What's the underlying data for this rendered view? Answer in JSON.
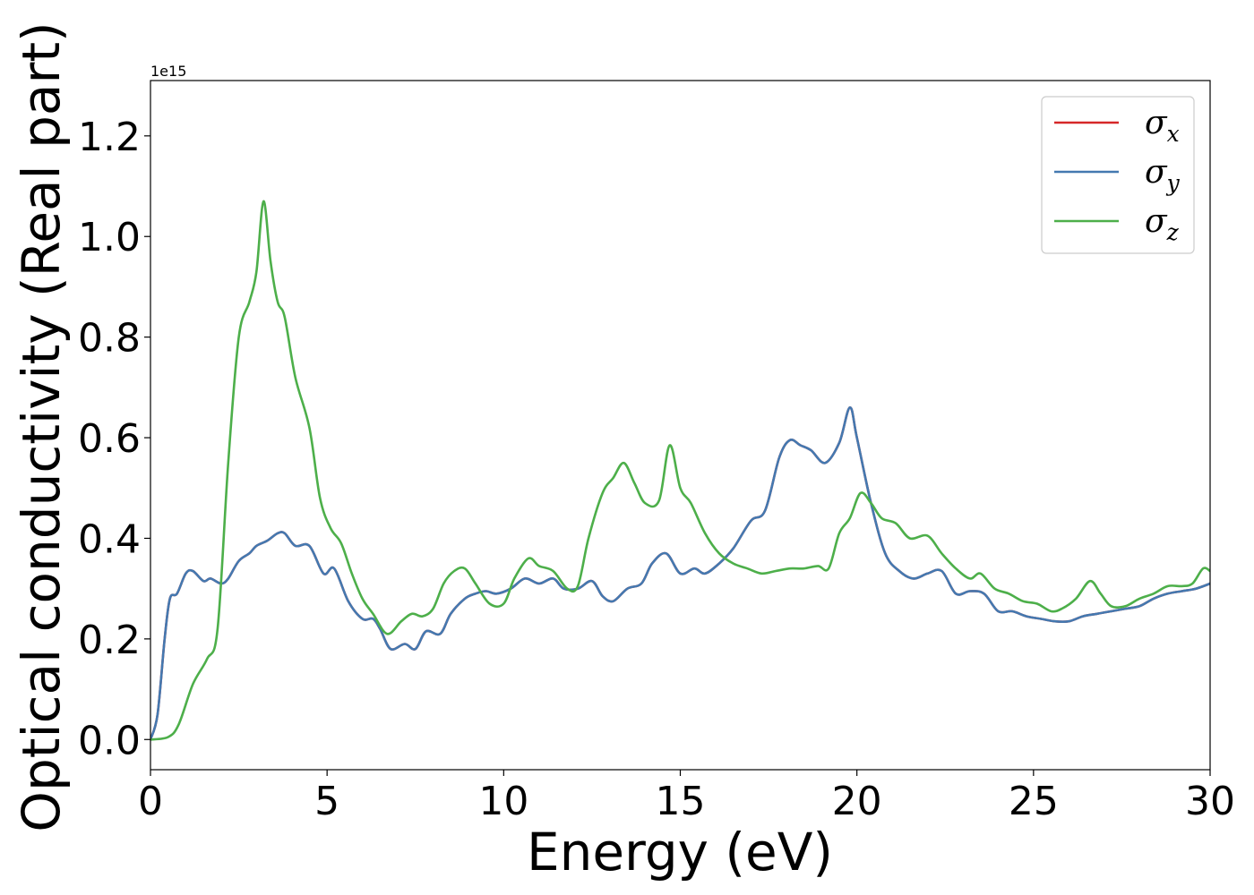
{
  "chart_data": {
    "type": "line",
    "xlabel": "Energy (eV)",
    "ylabel": "Optical conductivity (Real part)",
    "y_offset_text": "1e15",
    "xlim": [
      0,
      30
    ],
    "ylim": [
      -0.06,
      1.31
    ],
    "x_ticks": [
      0,
      5,
      10,
      15,
      20,
      25,
      30
    ],
    "y_ticks": [
      0.0,
      0.2,
      0.4,
      0.6,
      0.8,
      1.0,
      1.2
    ],
    "x_tick_labels": [
      "0",
      "5",
      "10",
      "15",
      "20",
      "25",
      "30"
    ],
    "y_tick_labels": [
      "0.0",
      "0.2",
      "0.4",
      "0.6",
      "0.8",
      "1.0",
      "1.2"
    ],
    "legend_position": "top-right",
    "series": [
      {
        "name": "σx",
        "base": "σ",
        "sub": "x",
        "color": "#d62728",
        "points": [
          [
            0,
            0.0
          ],
          [
            0.2,
            0.05
          ],
          [
            0.4,
            0.2
          ],
          [
            0.55,
            0.28
          ],
          [
            0.75,
            0.29
          ],
          [
            1.0,
            0.33
          ],
          [
            1.2,
            0.335
          ],
          [
            1.5,
            0.315
          ],
          [
            1.7,
            0.32
          ],
          [
            2.0,
            0.31
          ],
          [
            2.2,
            0.32
          ],
          [
            2.5,
            0.355
          ],
          [
            2.8,
            0.37
          ],
          [
            3.0,
            0.385
          ],
          [
            3.3,
            0.395
          ],
          [
            3.6,
            0.41
          ],
          [
            3.8,
            0.41
          ],
          [
            4.1,
            0.385
          ],
          [
            4.5,
            0.385
          ],
          [
            4.9,
            0.33
          ],
          [
            5.2,
            0.34
          ],
          [
            5.6,
            0.275
          ],
          [
            6.0,
            0.24
          ],
          [
            6.3,
            0.24
          ],
          [
            6.5,
            0.22
          ],
          [
            6.8,
            0.18
          ],
          [
            7.2,
            0.19
          ],
          [
            7.5,
            0.18
          ],
          [
            7.8,
            0.215
          ],
          [
            8.2,
            0.21
          ],
          [
            8.5,
            0.25
          ],
          [
            8.9,
            0.28
          ],
          [
            9.2,
            0.29
          ],
          [
            9.5,
            0.295
          ],
          [
            9.8,
            0.29
          ],
          [
            10.2,
            0.3
          ],
          [
            10.6,
            0.32
          ],
          [
            11.0,
            0.31
          ],
          [
            11.4,
            0.32
          ],
          [
            11.7,
            0.3
          ],
          [
            12.1,
            0.3
          ],
          [
            12.5,
            0.315
          ],
          [
            12.8,
            0.285
          ],
          [
            13.1,
            0.275
          ],
          [
            13.5,
            0.3
          ],
          [
            13.9,
            0.31
          ],
          [
            14.2,
            0.35
          ],
          [
            14.6,
            0.37
          ],
          [
            15.0,
            0.33
          ],
          [
            15.4,
            0.34
          ],
          [
            15.7,
            0.33
          ],
          [
            16.1,
            0.35
          ],
          [
            16.5,
            0.38
          ],
          [
            17.0,
            0.435
          ],
          [
            17.4,
            0.455
          ],
          [
            17.8,
            0.56
          ],
          [
            18.1,
            0.595
          ],
          [
            18.4,
            0.585
          ],
          [
            18.7,
            0.575
          ],
          [
            19.1,
            0.55
          ],
          [
            19.5,
            0.59
          ],
          [
            19.8,
            0.66
          ],
          [
            20.0,
            0.6
          ],
          [
            20.4,
            0.47
          ],
          [
            20.8,
            0.37
          ],
          [
            21.2,
            0.335
          ],
          [
            21.6,
            0.32
          ],
          [
            22.0,
            0.33
          ],
          [
            22.4,
            0.335
          ],
          [
            22.8,
            0.29
          ],
          [
            23.2,
            0.295
          ],
          [
            23.6,
            0.29
          ],
          [
            24.0,
            0.255
          ],
          [
            24.4,
            0.255
          ],
          [
            24.8,
            0.245
          ],
          [
            25.2,
            0.24
          ],
          [
            25.6,
            0.235
          ],
          [
            26.0,
            0.235
          ],
          [
            26.4,
            0.245
          ],
          [
            26.8,
            0.25
          ],
          [
            27.2,
            0.255
          ],
          [
            27.6,
            0.26
          ],
          [
            28.0,
            0.265
          ],
          [
            28.4,
            0.28
          ],
          [
            28.8,
            0.29
          ],
          [
            29.2,
            0.295
          ],
          [
            29.6,
            0.3
          ],
          [
            30.0,
            0.31
          ]
        ]
      },
      {
        "name": "σy",
        "base": "σ",
        "sub": "y",
        "color": "#4479b0",
        "points": [
          [
            0,
            0.0
          ],
          [
            0.2,
            0.05
          ],
          [
            0.4,
            0.2
          ],
          [
            0.55,
            0.28
          ],
          [
            0.75,
            0.29
          ],
          [
            1.0,
            0.33
          ],
          [
            1.2,
            0.335
          ],
          [
            1.5,
            0.315
          ],
          [
            1.7,
            0.32
          ],
          [
            2.0,
            0.31
          ],
          [
            2.2,
            0.32
          ],
          [
            2.5,
            0.355
          ],
          [
            2.8,
            0.37
          ],
          [
            3.0,
            0.385
          ],
          [
            3.3,
            0.395
          ],
          [
            3.6,
            0.41
          ],
          [
            3.8,
            0.41
          ],
          [
            4.1,
            0.385
          ],
          [
            4.5,
            0.385
          ],
          [
            4.9,
            0.33
          ],
          [
            5.2,
            0.34
          ],
          [
            5.6,
            0.275
          ],
          [
            6.0,
            0.24
          ],
          [
            6.3,
            0.24
          ],
          [
            6.5,
            0.22
          ],
          [
            6.8,
            0.18
          ],
          [
            7.2,
            0.19
          ],
          [
            7.5,
            0.18
          ],
          [
            7.8,
            0.215
          ],
          [
            8.2,
            0.21
          ],
          [
            8.5,
            0.25
          ],
          [
            8.9,
            0.28
          ],
          [
            9.2,
            0.29
          ],
          [
            9.5,
            0.295
          ],
          [
            9.8,
            0.29
          ],
          [
            10.2,
            0.3
          ],
          [
            10.6,
            0.32
          ],
          [
            11.0,
            0.31
          ],
          [
            11.4,
            0.32
          ],
          [
            11.7,
            0.3
          ],
          [
            12.1,
            0.3
          ],
          [
            12.5,
            0.315
          ],
          [
            12.8,
            0.285
          ],
          [
            13.1,
            0.275
          ],
          [
            13.5,
            0.3
          ],
          [
            13.9,
            0.31
          ],
          [
            14.2,
            0.35
          ],
          [
            14.6,
            0.37
          ],
          [
            15.0,
            0.33
          ],
          [
            15.4,
            0.34
          ],
          [
            15.7,
            0.33
          ],
          [
            16.1,
            0.35
          ],
          [
            16.5,
            0.38
          ],
          [
            17.0,
            0.435
          ],
          [
            17.4,
            0.455
          ],
          [
            17.8,
            0.56
          ],
          [
            18.1,
            0.595
          ],
          [
            18.4,
            0.585
          ],
          [
            18.7,
            0.575
          ],
          [
            19.1,
            0.55
          ],
          [
            19.5,
            0.59
          ],
          [
            19.8,
            0.66
          ],
          [
            20.0,
            0.6
          ],
          [
            20.4,
            0.47
          ],
          [
            20.8,
            0.37
          ],
          [
            21.2,
            0.335
          ],
          [
            21.6,
            0.32
          ],
          [
            22.0,
            0.33
          ],
          [
            22.4,
            0.335
          ],
          [
            22.8,
            0.29
          ],
          [
            23.2,
            0.295
          ],
          [
            23.6,
            0.29
          ],
          [
            24.0,
            0.255
          ],
          [
            24.4,
            0.255
          ],
          [
            24.8,
            0.245
          ],
          [
            25.2,
            0.24
          ],
          [
            25.6,
            0.235
          ],
          [
            26.0,
            0.235
          ],
          [
            26.4,
            0.245
          ],
          [
            26.8,
            0.25
          ],
          [
            27.2,
            0.255
          ],
          [
            27.6,
            0.26
          ],
          [
            28.0,
            0.265
          ],
          [
            28.4,
            0.28
          ],
          [
            28.8,
            0.29
          ],
          [
            29.2,
            0.295
          ],
          [
            29.6,
            0.3
          ],
          [
            30.0,
            0.31
          ]
        ]
      },
      {
        "name": "σz",
        "base": "σ",
        "sub": "z",
        "color": "#4daf4a",
        "points": [
          [
            0,
            0.0
          ],
          [
            0.5,
            0.005
          ],
          [
            0.8,
            0.03
          ],
          [
            1.2,
            0.11
          ],
          [
            1.6,
            0.16
          ],
          [
            1.9,
            0.22
          ],
          [
            2.2,
            0.55
          ],
          [
            2.5,
            0.8
          ],
          [
            2.8,
            0.87
          ],
          [
            3.0,
            0.93
          ],
          [
            3.2,
            1.07
          ],
          [
            3.4,
            0.95
          ],
          [
            3.6,
            0.87
          ],
          [
            3.8,
            0.84
          ],
          [
            4.1,
            0.72
          ],
          [
            4.5,
            0.62
          ],
          [
            4.8,
            0.48
          ],
          [
            5.1,
            0.42
          ],
          [
            5.4,
            0.39
          ],
          [
            5.7,
            0.33
          ],
          [
            6.0,
            0.28
          ],
          [
            6.3,
            0.25
          ],
          [
            6.7,
            0.21
          ],
          [
            7.1,
            0.235
          ],
          [
            7.4,
            0.25
          ],
          [
            7.7,
            0.245
          ],
          [
            8.0,
            0.26
          ],
          [
            8.3,
            0.31
          ],
          [
            8.6,
            0.335
          ],
          [
            8.9,
            0.34
          ],
          [
            9.2,
            0.31
          ],
          [
            9.6,
            0.27
          ],
          [
            10.0,
            0.27
          ],
          [
            10.3,
            0.32
          ],
          [
            10.7,
            0.36
          ],
          [
            11.0,
            0.345
          ],
          [
            11.4,
            0.335
          ],
          [
            11.8,
            0.3
          ],
          [
            12.1,
            0.305
          ],
          [
            12.4,
            0.4
          ],
          [
            12.8,
            0.49
          ],
          [
            13.1,
            0.52
          ],
          [
            13.4,
            0.55
          ],
          [
            13.7,
            0.51
          ],
          [
            14.0,
            0.47
          ],
          [
            14.4,
            0.475
          ],
          [
            14.7,
            0.585
          ],
          [
            15.0,
            0.5
          ],
          [
            15.3,
            0.47
          ],
          [
            15.7,
            0.41
          ],
          [
            16.1,
            0.37
          ],
          [
            16.5,
            0.35
          ],
          [
            16.9,
            0.34
          ],
          [
            17.3,
            0.33
          ],
          [
            17.7,
            0.335
          ],
          [
            18.1,
            0.34
          ],
          [
            18.5,
            0.34
          ],
          [
            18.9,
            0.345
          ],
          [
            19.2,
            0.34
          ],
          [
            19.5,
            0.41
          ],
          [
            19.8,
            0.44
          ],
          [
            20.1,
            0.49
          ],
          [
            20.4,
            0.47
          ],
          [
            20.7,
            0.44
          ],
          [
            21.1,
            0.43
          ],
          [
            21.5,
            0.4
          ],
          [
            22.0,
            0.405
          ],
          [
            22.4,
            0.37
          ],
          [
            22.8,
            0.34
          ],
          [
            23.2,
            0.32
          ],
          [
            23.5,
            0.33
          ],
          [
            23.9,
            0.3
          ],
          [
            24.3,
            0.29
          ],
          [
            24.7,
            0.275
          ],
          [
            25.1,
            0.27
          ],
          [
            25.5,
            0.255
          ],
          [
            25.8,
            0.26
          ],
          [
            26.2,
            0.28
          ],
          [
            26.6,
            0.315
          ],
          [
            26.9,
            0.29
          ],
          [
            27.2,
            0.265
          ],
          [
            27.6,
            0.265
          ],
          [
            28.0,
            0.28
          ],
          [
            28.4,
            0.29
          ],
          [
            28.8,
            0.305
          ],
          [
            29.2,
            0.305
          ],
          [
            29.5,
            0.31
          ],
          [
            29.8,
            0.34
          ],
          [
            30.0,
            0.335
          ]
        ]
      }
    ]
  }
}
